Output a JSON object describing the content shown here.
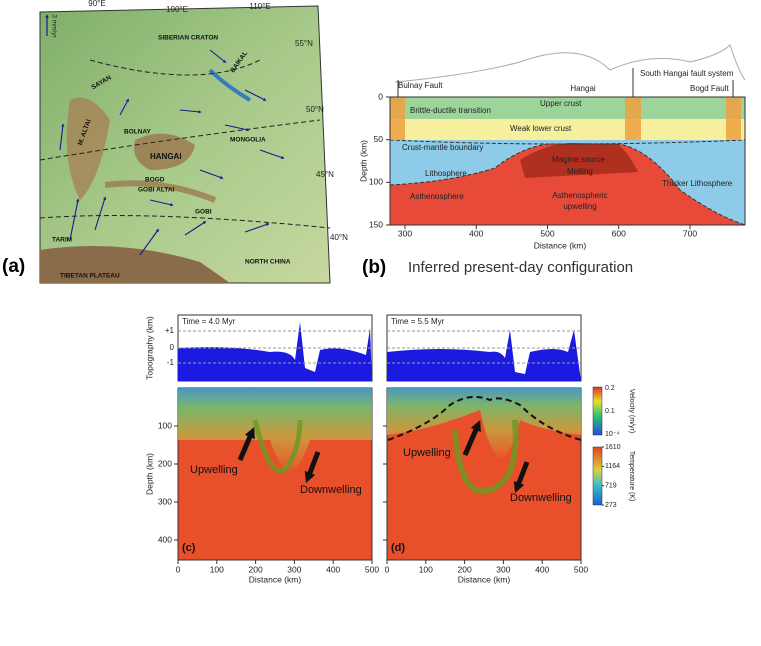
{
  "panel_a": {
    "label": "(a)",
    "scale": "3 mm/yr",
    "longitudes": [
      "90°E",
      "100°E",
      "110°E"
    ],
    "latitudes": [
      "55°N",
      "50°N",
      "45°N",
      "40°N"
    ],
    "places": [
      "SIBERIAN CRATON",
      "BAIKAL",
      "SAYAN",
      "BOLNAY",
      "MONGOLIA",
      "M. ALTAI",
      "HANGAI",
      "BOGD",
      "GOBI ALTAI",
      "GOBI",
      "TARIM",
      "NORTH CHINA",
      "TIBETAN PLATEAU"
    ]
  },
  "panel_b": {
    "label": "(b)",
    "caption": "Inferred present-day configuration",
    "faults": [
      "Bulnay Fault",
      "Hangai",
      "South Hangai fault system",
      "Bogd Fault"
    ],
    "layers": [
      "Upper crust",
      "Brittle-ductile transition",
      "Weak lower crust",
      "Crust-mantle boundary",
      "Magma source",
      "Melting",
      "Lithosphere",
      "Thicker Lithosphere",
      "Asthenosphere",
      "Asthenospheric",
      "upwelling"
    ],
    "y_axis_label": "Depth (km)",
    "x_axis_label": "Distance (km)",
    "xticks": [
      300,
      400,
      500,
      600,
      700
    ],
    "yticks": [
      0,
      50,
      100,
      150
    ]
  },
  "sections": {
    "topo_label": "Topography (km)",
    "topo_ticks": [
      "+1",
      "0",
      "-1"
    ],
    "depth_label": "Depth (km)",
    "depth_ticks": [
      100,
      200,
      300,
      400
    ],
    "distance_label": "Distance (km)",
    "distance_ticks": [
      0,
      100,
      200,
      300,
      400,
      500
    ],
    "upwelling": "Upwelling",
    "downwelling": "Downwelling"
  },
  "panel_c": {
    "label": "(c)",
    "time": "Time = 4.0 Myr"
  },
  "panel_d": {
    "label": "(d)",
    "time": "Time = 5.5 Myr"
  },
  "velocity_bar": {
    "label": "Velocity (m/yr)",
    "ticks": [
      "0.2",
      "0.1",
      "10⁻⁴"
    ]
  },
  "temperature_bar": {
    "label": "Temperature (K)",
    "ticks": [
      1610,
      1164,
      719,
      273
    ]
  }
}
